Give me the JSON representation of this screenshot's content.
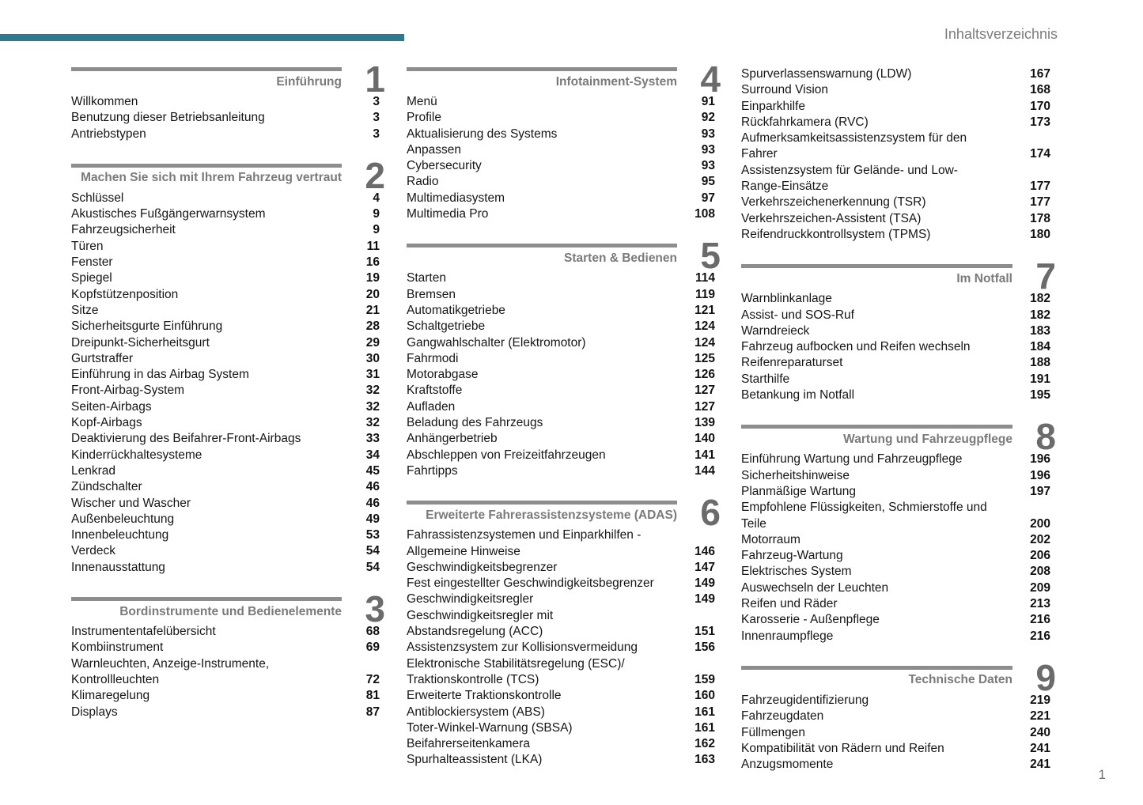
{
  "header": {
    "title": "Inhaltsverzeichnis"
  },
  "footer": {
    "page_number": "1"
  },
  "accent_color": "#2b7a91",
  "bar_color": "#8d8d8d",
  "columns": [
    {
      "sections": [
        {
          "number": "1",
          "title": "Einführung",
          "entries": [
            {
              "label": "Willkommen",
              "page": "3"
            },
            {
              "label": "Benutzung dieser Betriebsanleitung",
              "page": "3"
            },
            {
              "label": "Antriebstypen",
              "page": "3"
            }
          ]
        },
        {
          "number": "2",
          "title": "Machen Sie sich mit Ihrem Fahrzeug vertraut",
          "entries": [
            {
              "label": "Schlüssel",
              "page": "4"
            },
            {
              "label": "Akustisches Fußgängerwarnsystem",
              "page": "9"
            },
            {
              "label": "Fahrzeugsicherheit",
              "page": "9"
            },
            {
              "label": "Türen",
              "page": "11"
            },
            {
              "label": "Fenster",
              "page": "16"
            },
            {
              "label": "Spiegel",
              "page": "19"
            },
            {
              "label": "Kopfstützenposition",
              "page": "20"
            },
            {
              "label": "Sitze",
              "page": "21"
            },
            {
              "label": "Sicherheitsgurte Einführung",
              "page": "28"
            },
            {
              "label": "Dreipunkt-Sicherheitsgurt",
              "page": "29"
            },
            {
              "label": "Gurtstraffer",
              "page": "30"
            },
            {
              "label": "Einführung in das Airbag System",
              "page": "31"
            },
            {
              "label": "Front-Airbag-System",
              "page": "32"
            },
            {
              "label": "Seiten-Airbags",
              "page": "32"
            },
            {
              "label": "Kopf-Airbags",
              "page": "32"
            },
            {
              "label": "Deaktivierung des Beifahrer-Front-Airbags",
              "page": "33"
            },
            {
              "label": "Kinderrückhaltesysteme",
              "page": "34"
            },
            {
              "label": "Lenkrad",
              "page": "45"
            },
            {
              "label": "Zündschalter",
              "page": "46"
            },
            {
              "label": "Wischer und Wascher",
              "page": "46"
            },
            {
              "label": "Außenbeleuchtung",
              "page": "49"
            },
            {
              "label": "Innenbeleuchtung",
              "page": "53"
            },
            {
              "label": "Verdeck",
              "page": "54"
            },
            {
              "label": "Innenausstattung",
              "page": "54"
            }
          ]
        },
        {
          "number": "3",
          "title": "Bordinstrumente und Bedienelemente",
          "entries": [
            {
              "label": "Instrumententafelübersicht",
              "page": "68"
            },
            {
              "label": "Kombiinstrument",
              "page": "69"
            },
            {
              "label": "Warnleuchten, Anzeige-Instrumente,\nKontrollleuchten",
              "page": "72"
            },
            {
              "label": "Klimaregelung",
              "page": "81"
            },
            {
              "label": "Displays",
              "page": "87"
            }
          ]
        }
      ]
    },
    {
      "sections": [
        {
          "number": "4",
          "title": "Infotainment-System",
          "entries": [
            {
              "label": "Menü",
              "page": "91"
            },
            {
              "label": "Profile",
              "page": "92"
            },
            {
              "label": "Aktualisierung des Systems",
              "page": "93"
            },
            {
              "label": "Anpassen",
              "page": "93"
            },
            {
              "label": "Cybersecurity",
              "page": "93"
            },
            {
              "label": "Radio",
              "page": "95"
            },
            {
              "label": "Multimediasystem",
              "page": "97"
            },
            {
              "label": "Multimedia Pro",
              "page": "108"
            }
          ]
        },
        {
          "number": "5",
          "title": "Starten & Bedienen",
          "entries": [
            {
              "label": "Starten",
              "page": "114"
            },
            {
              "label": "Bremsen",
              "page": "119"
            },
            {
              "label": "Automatikgetriebe",
              "page": "121"
            },
            {
              "label": "Schaltgetriebe",
              "page": "124"
            },
            {
              "label": "Gangwahlschalter (Elektromotor)",
              "page": "124"
            },
            {
              "label": "Fahrmodi",
              "page": "125"
            },
            {
              "label": "Motorabgase",
              "page": "126"
            },
            {
              "label": "Kraftstoffe",
              "page": "127"
            },
            {
              "label": "Aufladen",
              "page": "127"
            },
            {
              "label": "Beladung des Fahrzeugs",
              "page": "139"
            },
            {
              "label": "Anhängerbetrieb",
              "page": "140"
            },
            {
              "label": "Abschleppen von Freizeitfahrzeugen",
              "page": "141"
            },
            {
              "label": "Fahrtipps",
              "page": "144"
            }
          ]
        },
        {
          "number": "6",
          "title": "Erweiterte Fahrerassistenzsysteme (ADAS)",
          "entries": [
            {
              "label": "Fahrassistenzsystemen und Einparkhilfen -\nAllgemeine Hinweise",
              "page": "146"
            },
            {
              "label": "Geschwindigkeitsbegrenzer",
              "page": "147"
            },
            {
              "label": "Fest eingestellter Geschwindigkeitsbegrenzer",
              "page": "149"
            },
            {
              "label": "Geschwindigkeitsregler",
              "page": "149"
            },
            {
              "label": "Geschwindigkeitsregler mit\nAbstandsregelung (ACC)",
              "page": "151"
            },
            {
              "label": "Assistenzsystem zur Kollisionsvermeidung",
              "page": "156"
            },
            {
              "label": "Elektronische Stabilitätsregelung (ESC)/\nTraktionskontrolle (TCS)",
              "page": "159"
            },
            {
              "label": "Erweiterte Traktionskontrolle",
              "page": "160"
            },
            {
              "label": "Antiblockiersystem (ABS)",
              "page": "161"
            },
            {
              "label": "Toter-Winkel-Warnung (SBSA)",
              "page": "161"
            },
            {
              "label": "Beifahrerseitenkamera",
              "page": "162"
            },
            {
              "label": "Spurhalteassistent (LKA)",
              "page": "163"
            }
          ]
        }
      ]
    },
    {
      "sections": [
        {
          "number": "",
          "title": "",
          "entries": [
            {
              "label": "Spurverlassenswarnung (LDW)",
              "page": "167"
            },
            {
              "label": "Surround Vision",
              "page": "168"
            },
            {
              "label": "Einparkhilfe",
              "page": "170"
            },
            {
              "label": "Rückfahrkamera (RVC)",
              "page": "173"
            },
            {
              "label": "Aufmerksamkeitsassistenzsystem für den\nFahrer",
              "page": "174"
            },
            {
              "label": "Assistenzsystem für Gelände- und Low-\nRange-Einsätze",
              "page": "177"
            },
            {
              "label": "Verkehrszeichenerkennung (TSR)",
              "page": "177"
            },
            {
              "label": "Verkehrszeichen-Assistent (TSA)",
              "page": "178"
            },
            {
              "label": "Reifendruckkontrollsystem (TPMS)",
              "page": "180"
            }
          ]
        },
        {
          "number": "7",
          "title": "Im Notfall",
          "entries": [
            {
              "label": "Warnblinkanlage",
              "page": "182"
            },
            {
              "label": "Assist- und SOS-Ruf",
              "page": "182"
            },
            {
              "label": "Warndreieck",
              "page": "183"
            },
            {
              "label": "Fahrzeug aufbocken und Reifen wechseln",
              "page": "184"
            },
            {
              "label": "Reifenreparaturset",
              "page": "188"
            },
            {
              "label": "Starthilfe",
              "page": "191"
            },
            {
              "label": "Betankung im Notfall",
              "page": "195"
            }
          ]
        },
        {
          "number": "8",
          "title": "Wartung und Fahrzeugpflege",
          "entries": [
            {
              "label": "Einführung Wartung und Fahrzeugpflege",
              "page": "196"
            },
            {
              "label": "Sicherheitshinweise",
              "page": "196"
            },
            {
              "label": "Planmäßige Wartung",
              "page": "197"
            },
            {
              "label": "Empfohlene Flüssigkeiten, Schmierstoffe und\nTeile",
              "page": "200"
            },
            {
              "label": "Motorraum",
              "page": "202"
            },
            {
              "label": "Fahrzeug-Wartung",
              "page": "206"
            },
            {
              "label": "Elektrisches System",
              "page": "208"
            },
            {
              "label": "Auswechseln der Leuchten",
              "page": "209"
            },
            {
              "label": "Reifen und Räder",
              "page": "213"
            },
            {
              "label": "Karosserie - Außenpflege",
              "page": "216"
            },
            {
              "label": "Innenraumpflege",
              "page": "216"
            }
          ]
        },
        {
          "number": "9",
          "title": "Technische Daten",
          "entries": [
            {
              "label": "Fahrzeugidentifizierung",
              "page": "219"
            },
            {
              "label": "Fahrzeugdaten",
              "page": "221"
            },
            {
              "label": "Füllmengen",
              "page": "240"
            },
            {
              "label": "Kompatibilität von Rädern und Reifen",
              "page": "241"
            },
            {
              "label": "Anzugsmomente",
              "page": "241"
            }
          ]
        }
      ]
    }
  ]
}
